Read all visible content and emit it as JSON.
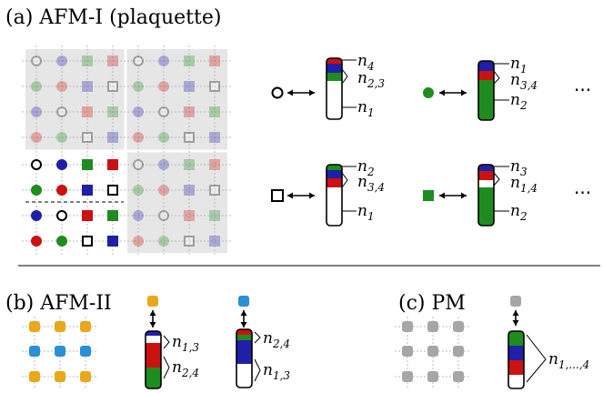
{
  "panels": {
    "a": {
      "title": "(a) AFM-I (plaquette)"
    },
    "b": {
      "title": "(b) AFM-II"
    },
    "c": {
      "title": "(c) PM"
    }
  },
  "colors": {
    "blue": "#1f1fa8",
    "red": "#cc1111",
    "green": "#1f8c1f",
    "orange": "#e8a81a",
    "lightblue": "#2a8fd4",
    "gray": "#a6a6a6",
    "shade": "#e6e6e6"
  },
  "afm1_labels": {
    "circle_open": {
      "top": "n",
      "top_sub": "4",
      "mid": "n",
      "mid_sub": "2,3",
      "bot": "n",
      "bot_sub": "1"
    },
    "circle_green": {
      "top": "n",
      "top_sub": "1",
      "mid": "n",
      "mid_sub": "3,4",
      "bot": "n",
      "bot_sub": "2"
    },
    "square_open": {
      "top": "n",
      "top_sub": "2",
      "mid": "n",
      "mid_sub": "3,4",
      "bot": "n",
      "bot_sub": "1"
    },
    "square_green": {
      "top": "n",
      "top_sub": "3",
      "mid": "n",
      "mid_sub": "1,4",
      "bot": "n",
      "bot_sub": "2"
    },
    "ellipsis": "···"
  },
  "afm2_labels": {
    "orange": {
      "top": "n",
      "top_sub": "1,3",
      "bot": "n",
      "bot_sub": "2,4"
    },
    "blue": {
      "top": "n",
      "top_sub": "2,4",
      "bot": "n",
      "bot_sub": "1,3"
    }
  },
  "pm_label": {
    "text": "n",
    "sub": "1,...,4"
  }
}
